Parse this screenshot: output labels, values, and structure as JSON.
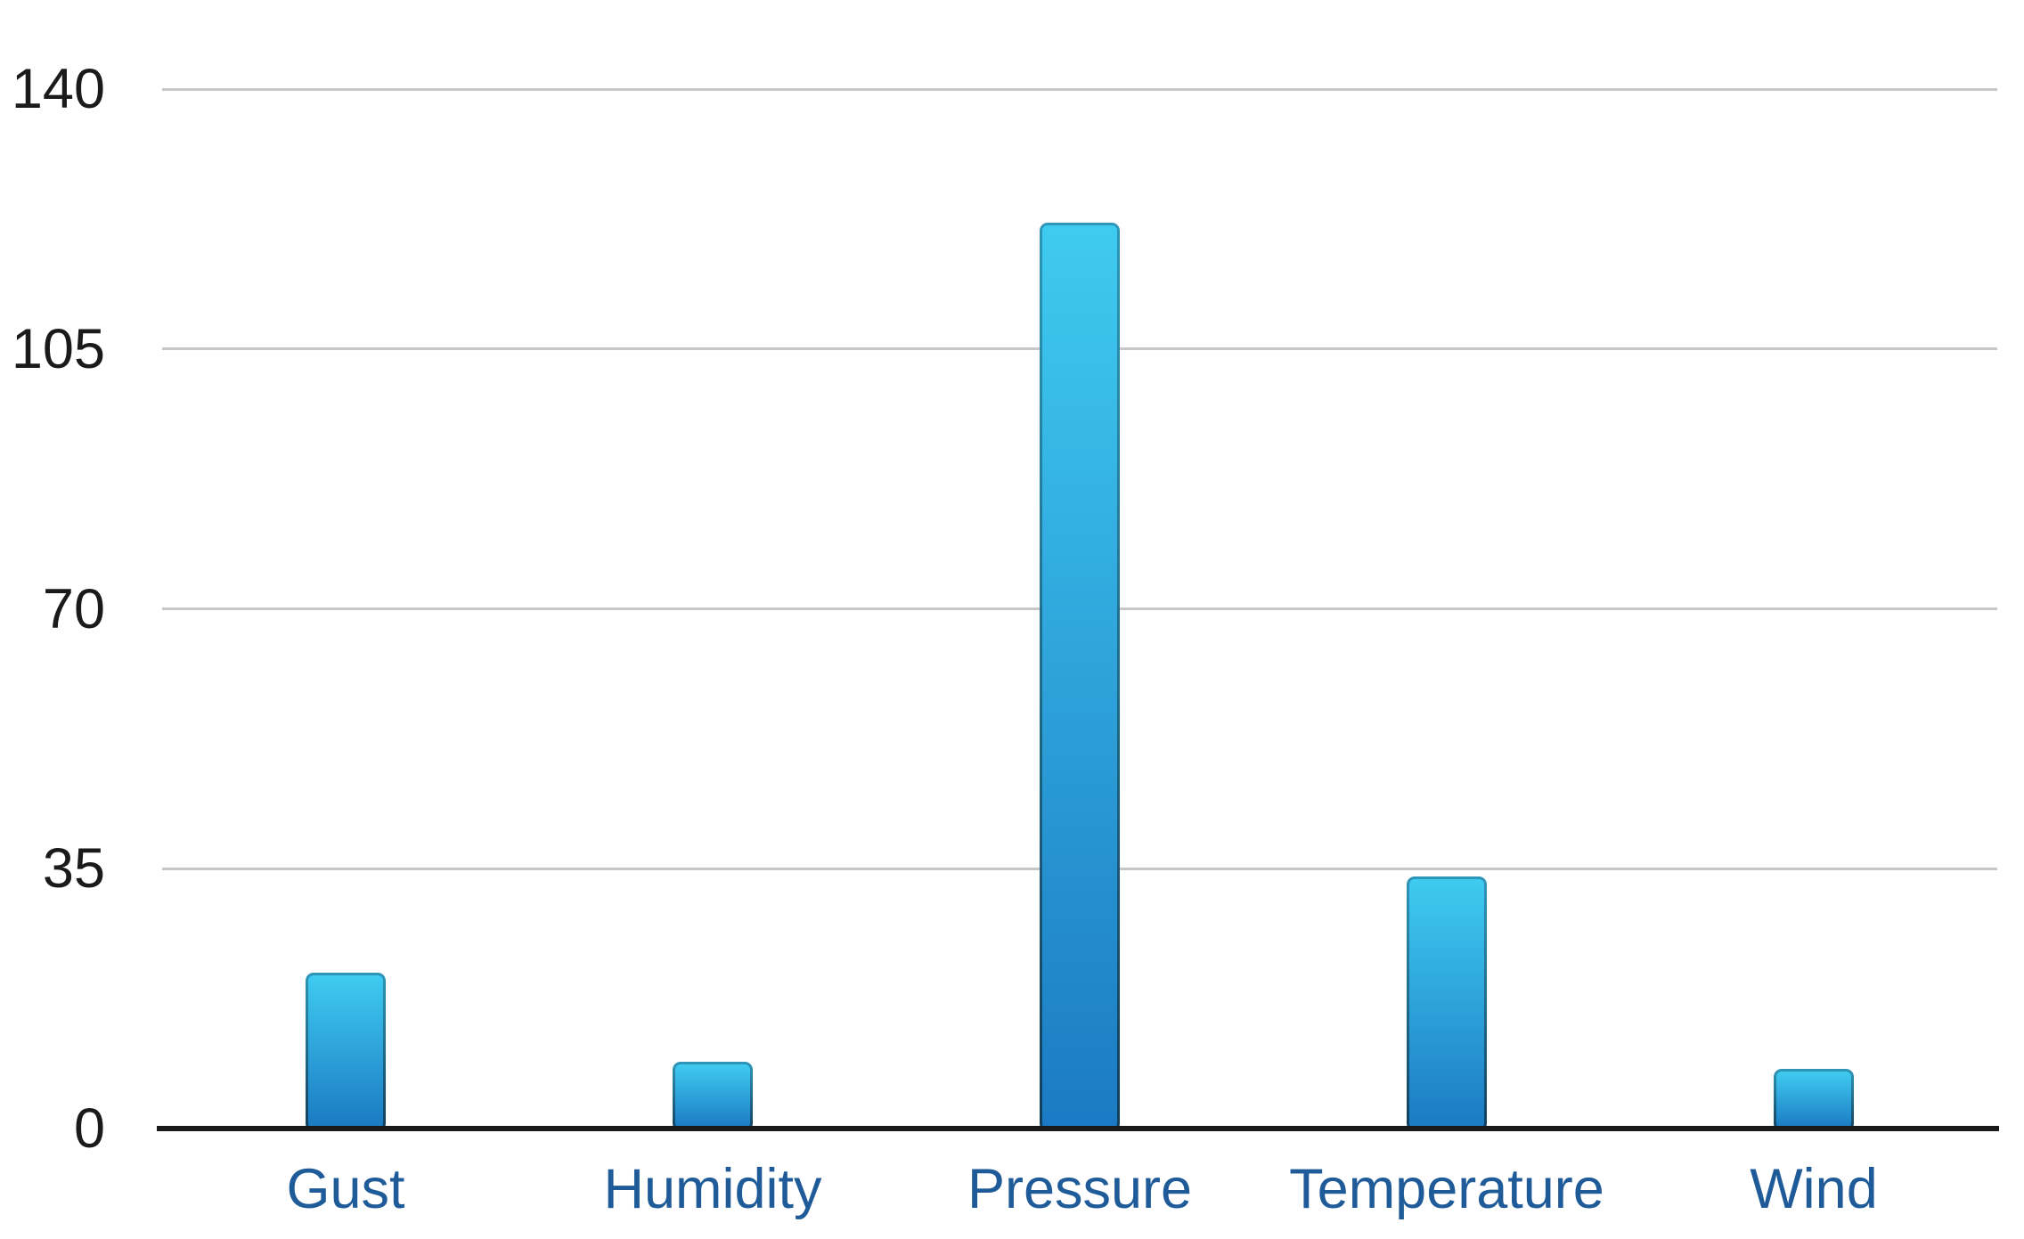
{
  "chart_data": {
    "type": "bar",
    "title": "",
    "categories": [
      "Gust",
      "Humidity",
      "Pressure",
      "Temperature",
      "Wind"
    ],
    "values": [
      21,
      9,
      122,
      34,
      8
    ],
    "xlabel": "",
    "ylabel": "",
    "ylim": [
      0,
      140
    ],
    "yticks": [
      0,
      35,
      70,
      105,
      140
    ],
    "grid": true,
    "legend": false,
    "colors": {
      "bar_fill_top": "#3fcbf0",
      "bar_fill_bottom": "#1b7ac3",
      "bar_border_top": "#2e96ba",
      "bar_border_bottom": "#113f5c",
      "gridline": "#c7c7c7",
      "axis": "#1a1a1a",
      "tick_label": "#1a1a1a",
      "category_label": "#1f5b99",
      "background": "#ffffff"
    }
  }
}
